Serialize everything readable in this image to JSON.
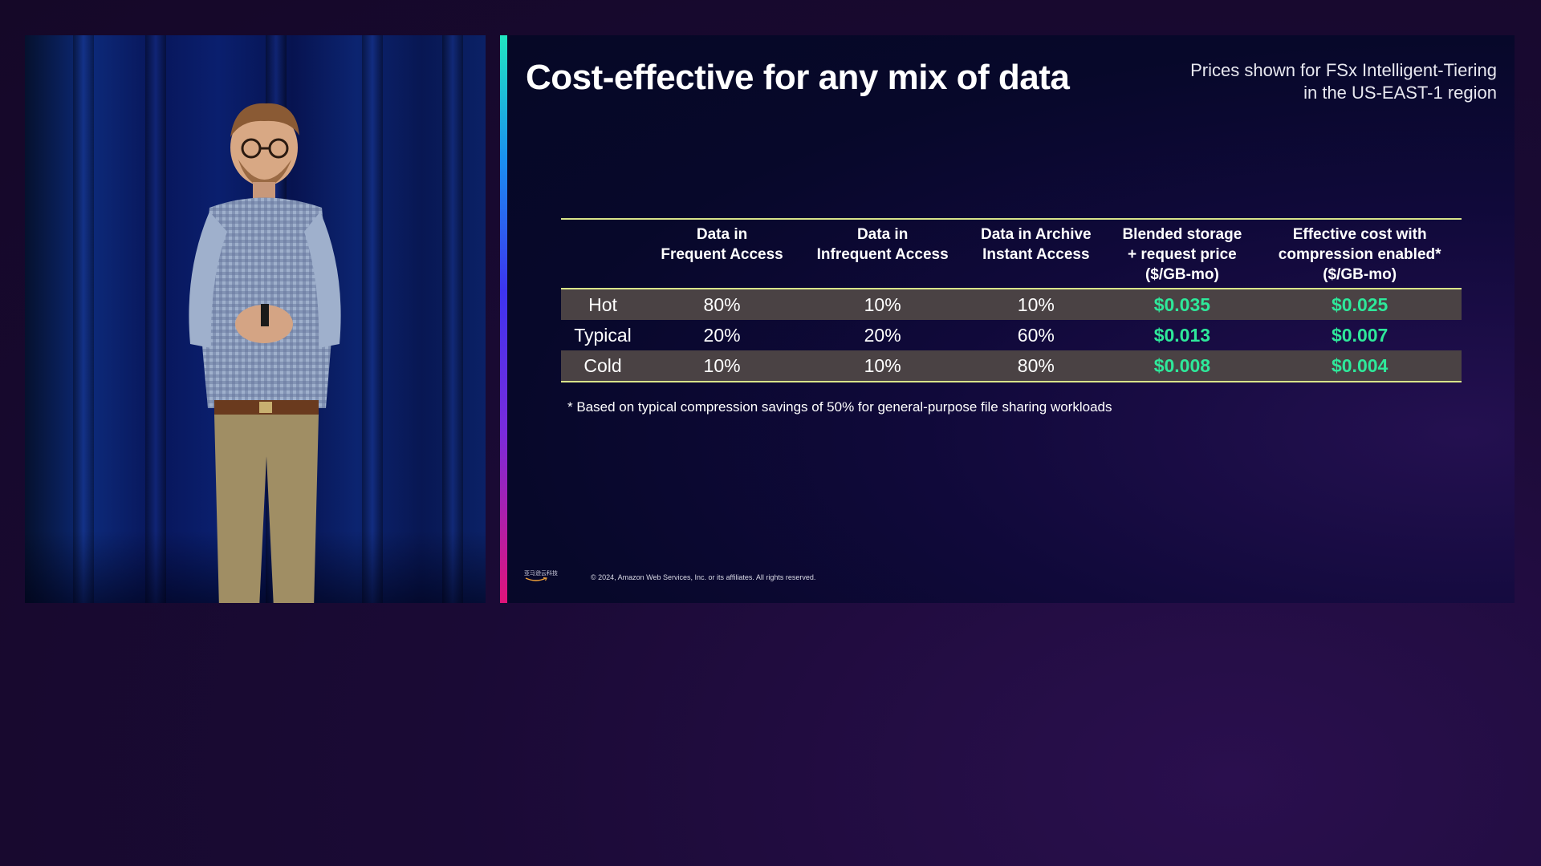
{
  "slide": {
    "title": "Cost-effective for any mix of data",
    "pricing_note": {
      "line1": "Prices shown for FSx Intelligent-Tiering",
      "line2": "in the US-EAST-1 region"
    },
    "table": {
      "headers": [
        {
          "lines": [
            "",
            "",
            ""
          ]
        },
        {
          "lines": [
            "Data in",
            "Frequent Access",
            ""
          ]
        },
        {
          "lines": [
            "Data in",
            "Infrequent Access",
            ""
          ]
        },
        {
          "lines": [
            "Data in Archive",
            "Instant Access",
            ""
          ]
        },
        {
          "lines": [
            "Blended storage",
            "+ request price",
            "($/GB-mo)"
          ]
        },
        {
          "lines": [
            "Effective cost with",
            "compression enabled*",
            "($/GB-mo)"
          ]
        }
      ],
      "rows": [
        {
          "label": "Hot",
          "frequent": "80%",
          "infrequent": "10%",
          "archive": "10%",
          "blended": "$0.035",
          "effective": "$0.025"
        },
        {
          "label": "Typical",
          "frequent": "20%",
          "infrequent": "20%",
          "archive": "60%",
          "blended": "$0.013",
          "effective": "$0.007"
        },
        {
          "label": "Cold",
          "frequent": "10%",
          "infrequent": "10%",
          "archive": "80%",
          "blended": "$0.008",
          "effective": "$0.004"
        }
      ]
    },
    "footnote": "* Based on typical compression savings of 50% for general-purpose file sharing workloads",
    "logo_text": "亚马逊云科技",
    "copyright": "© 2024, Amazon Web Services, Inc. or its affiliates. All rights reserved."
  },
  "colors": {
    "price_green": "#2ee89a",
    "rule_yellow": "#d9e48a",
    "band_row": "#4a4244"
  }
}
